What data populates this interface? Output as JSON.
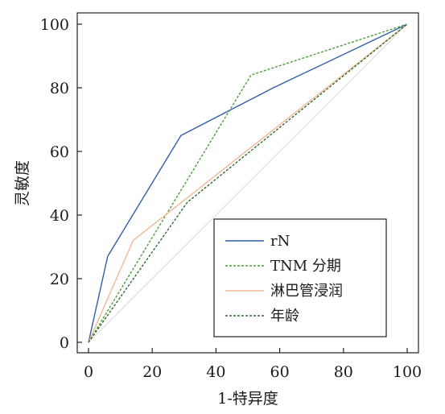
{
  "chart_data": {
    "type": "line",
    "xlabel": "1-特异度",
    "ylabel": "灵敏度",
    "xlim": [
      0,
      100
    ],
    "ylim": [
      0,
      100
    ],
    "x_ticks": [
      "0",
      "20",
      "40",
      "60",
      "80",
      "100"
    ],
    "y_ticks": [
      "0",
      "20",
      "40",
      "60",
      "80",
      "100"
    ],
    "grid": false,
    "legend_position": "bottom-right",
    "reference_line": {
      "x": [
        0,
        100
      ],
      "y": [
        0,
        100
      ],
      "color": "#d9d9d9"
    },
    "series": [
      {
        "name": "rN",
        "color": "#2f5fa8",
        "dash": "solid",
        "x": [
          0,
          6,
          29,
          58,
          100
        ],
        "y": [
          0,
          27,
          65,
          80,
          100
        ]
      },
      {
        "name": "TNM 分期",
        "color": "#4a9e3a",
        "dash": "short",
        "x": [
          0,
          51,
          100
        ],
        "y": [
          0,
          84,
          100
        ]
      },
      {
        "name": "淋巴管浸润",
        "color": "#f2b894",
        "dash": "solid",
        "x": [
          0,
          14,
          100
        ],
        "y": [
          0,
          32,
          100
        ]
      },
      {
        "name": "年龄",
        "color": "#2e6b2e",
        "dash": "short",
        "x": [
          0,
          31,
          100
        ],
        "y": [
          0,
          44,
          100
        ]
      }
    ]
  }
}
